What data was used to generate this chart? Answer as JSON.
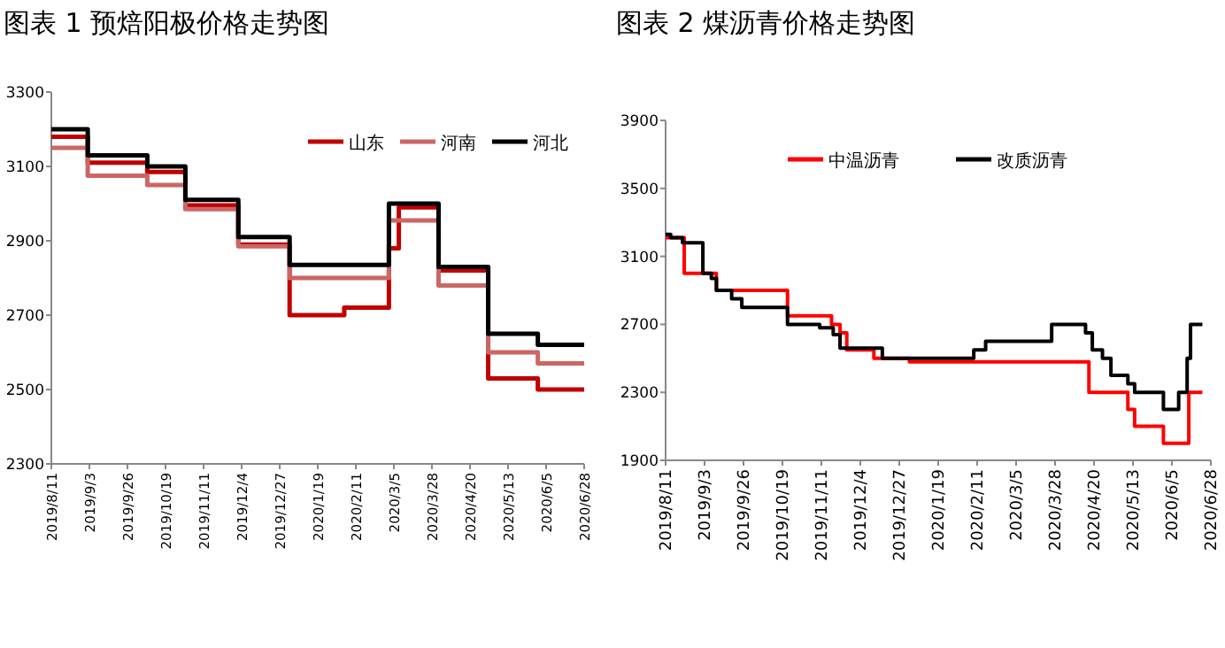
{
  "chart_data": [
    {
      "type": "step",
      "title": "图表 1  预焙阳极价格走势图",
      "xlim": [
        "2019-08-11",
        "2020-06-28"
      ],
      "xticks": [
        {
          "value": "2019-08-11",
          "label": "2019/8/11"
        },
        {
          "value": "2019-09-03",
          "label": "2019/9/3"
        },
        {
          "value": "2019-09-26",
          "label": "2019/9/26"
        },
        {
          "value": "2019-10-19",
          "label": "2019/10/19"
        },
        {
          "value": "2019-11-11",
          "label": "2019/11/11"
        },
        {
          "value": "2019-12-04",
          "label": "2019/12/4"
        },
        {
          "value": "2019-12-27",
          "label": "2019/12/27"
        },
        {
          "value": "2020-01-19",
          "label": "2020/1/19"
        },
        {
          "value": "2020-02-11",
          "label": "2020/2/11"
        },
        {
          "value": "2020-03-05",
          "label": "2020/3/5"
        },
        {
          "value": "2020-03-28",
          "label": "2020/3/28"
        },
        {
          "value": "2020-04-20",
          "label": "2020/4/20"
        },
        {
          "value": "2020-05-13",
          "label": "2020/5/13"
        },
        {
          "value": "2020-06-05",
          "label": "2020/6/5"
        },
        {
          "value": "2020-06-28",
          "label": "2020/6/28"
        }
      ],
      "ylim": [
        2300,
        3300
      ],
      "yticks": [
        2300,
        2500,
        2700,
        2900,
        3100,
        3300
      ],
      "legend": "top right",
      "series": [
        {
          "name": "山东",
          "color": "#c00000",
          "x": [
            "2019-08-11",
            "2019-09-02",
            "2019-10-08",
            "2019-10-31",
            "2019-12-02",
            "2020-01-02",
            "2020-02-04",
            "2020-03-02",
            "2020-03-08",
            "2020-04-01",
            "2020-05-01",
            "2020-05-31",
            "2020-06-28"
          ],
          "values": [
            3180,
            3110,
            3085,
            2995,
            2890,
            2700,
            2720,
            2880,
            2990,
            2820,
            2530,
            2500,
            2500
          ]
        },
        {
          "name": "河南",
          "color": "#cc6666",
          "x": [
            "2019-08-11",
            "2019-09-02",
            "2019-10-08",
            "2019-10-31",
            "2019-12-02",
            "2020-01-02",
            "2020-03-02",
            "2020-04-01",
            "2020-05-01",
            "2020-05-31",
            "2020-06-28"
          ],
          "values": [
            3150,
            3075,
            3050,
            2985,
            2885,
            2800,
            2955,
            2780,
            2600,
            2570,
            2570
          ]
        },
        {
          "name": "河北",
          "color": "#000000",
          "x": [
            "2019-08-11",
            "2019-09-02",
            "2019-10-08",
            "2019-10-31",
            "2019-12-02",
            "2020-01-02",
            "2020-03-02",
            "2020-04-01",
            "2020-05-01",
            "2020-05-31",
            "2020-06-28"
          ],
          "values": [
            3200,
            3130,
            3100,
            3010,
            2910,
            2835,
            3000,
            2830,
            2650,
            2620,
            2620
          ]
        }
      ]
    },
    {
      "type": "step",
      "title": "图表 2  煤沥青价格走势图",
      "xlim": [
        "2019-08-11",
        "2020-06-28"
      ],
      "xticks": [
        {
          "value": "2019-08-11",
          "label": "2019/8/11"
        },
        {
          "value": "2019-09-03",
          "label": "2019/9/3"
        },
        {
          "value": "2019-09-26",
          "label": "2019/9/26"
        },
        {
          "value": "2019-10-19",
          "label": "2019/10/19"
        },
        {
          "value": "2019-11-11",
          "label": "2019/11/11"
        },
        {
          "value": "2019-12-04",
          "label": "2019/12/4"
        },
        {
          "value": "2019-12-27",
          "label": "2019/12/27"
        },
        {
          "value": "2020-01-19",
          "label": "2020/1/19"
        },
        {
          "value": "2020-02-11",
          "label": "2020/2/11"
        },
        {
          "value": "2020-03-05",
          "label": "2020/3/5"
        },
        {
          "value": "2020-03-28",
          "label": "2020/3/28"
        },
        {
          "value": "2020-04-20",
          "label": "2020/4/20"
        },
        {
          "value": "2020-05-13",
          "label": "2020/5/13"
        },
        {
          "value": "2020-06-05",
          "label": "2020/6/5"
        },
        {
          "value": "2020-06-28",
          "label": "2020/6/28"
        }
      ],
      "ylim": [
        1900,
        3900
      ],
      "yticks": [
        1900,
        2300,
        2700,
        3100,
        3500,
        3900
      ],
      "legend": "top",
      "series": [
        {
          "name": "中温沥青",
          "color": "#ff0000",
          "x": [
            "2019-08-11",
            "2019-08-22",
            "2019-09-10",
            "2019-10-22",
            "2019-11-17",
            "2019-11-22",
            "2019-11-26",
            "2019-12-12",
            "2020-01-02",
            "2020-04-17",
            "2020-05-10",
            "2020-05-14",
            "2020-05-31",
            "2020-06-15",
            "2020-06-23"
          ],
          "values": [
            3210,
            3000,
            2900,
            2750,
            2700,
            2650,
            2550,
            2500,
            2480,
            2300,
            2200,
            2100,
            2000,
            2300,
            2300
          ]
        },
        {
          "name": "改质沥青",
          "color": "#000000",
          "x": [
            "2019-08-11",
            "2019-08-14",
            "2019-08-21",
            "2019-09-02",
            "2019-09-07",
            "2019-09-10",
            "2019-09-19",
            "2019-09-25",
            "2019-10-22",
            "2019-11-10",
            "2019-11-18",
            "2019-11-22",
            "2019-12-17",
            "2020-02-09",
            "2020-02-16",
            "2020-03-26",
            "2020-04-15",
            "2020-04-19",
            "2020-04-25",
            "2020-04-30",
            "2020-05-10",
            "2020-05-14",
            "2020-05-31",
            "2020-06-09",
            "2020-06-14",
            "2020-06-16",
            "2020-06-23"
          ],
          "values": [
            3230,
            3210,
            3180,
            3000,
            2970,
            2900,
            2850,
            2800,
            2700,
            2680,
            2640,
            2560,
            2500,
            2550,
            2600,
            2700,
            2650,
            2550,
            2500,
            2400,
            2350,
            2300,
            2200,
            2300,
            2500,
            2700,
            2700
          ]
        }
      ]
    }
  ]
}
